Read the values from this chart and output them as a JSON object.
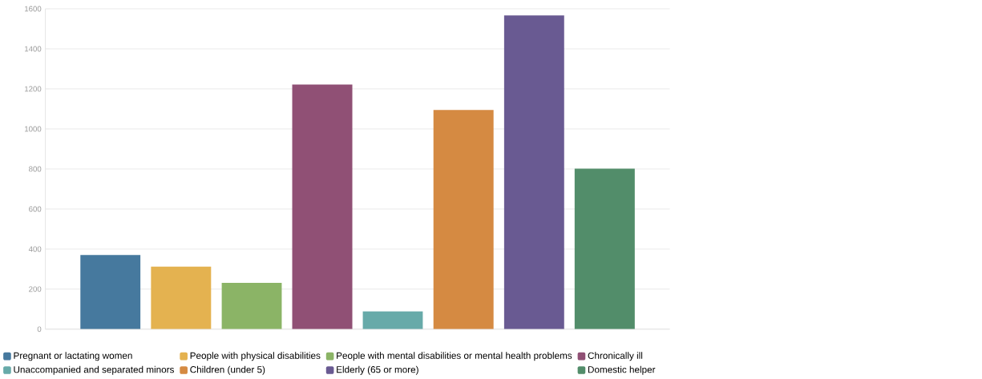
{
  "chart_data": {
    "type": "bar",
    "categories": [
      null
    ],
    "series": [
      {
        "name": "Pregnant or lactating women",
        "color": "#46799e",
        "values": [
          370
        ]
      },
      {
        "name": "People with physical disabilities",
        "color": "#e4b250",
        "values": [
          312
        ]
      },
      {
        "name": "People with mental disabilities or mental health problems",
        "color": "#8bb466",
        "values": [
          231
        ]
      },
      {
        "name": "Chronically ill",
        "color": "#905075",
        "values": [
          1222
        ]
      },
      {
        "name": "Unaccompanied and separated minors",
        "color": "#67aaa9",
        "values": [
          89
        ]
      },
      {
        "name": "Children (under 5)",
        "color": "#d58a42",
        "values": [
          1095
        ]
      },
      {
        "name": "Elderly (65 or more)",
        "color": "#695a92",
        "values": [
          1567
        ]
      },
      {
        "name": "Domestic helper",
        "color": "#528d6a",
        "values": [
          802
        ]
      }
    ],
    "ylim": [
      0,
      1600
    ],
    "yticks": [
      0,
      200,
      400,
      600,
      800,
      1000,
      1200,
      1400,
      1600
    ],
    "grid": "y",
    "legend": "bottom",
    "tick_labels": "y"
  }
}
